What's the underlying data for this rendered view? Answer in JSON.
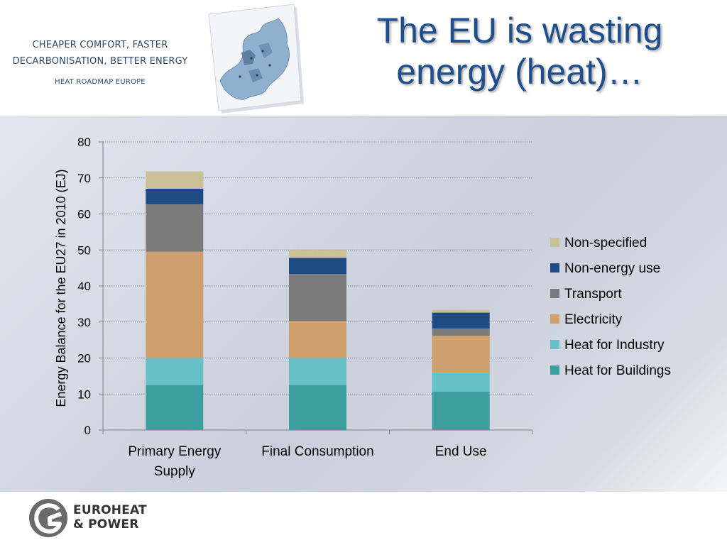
{
  "header": {
    "tagline_1": "CHEAPER COMFORT, FASTER",
    "tagline_2": "DECARBONISATION, BETTER ENERGY",
    "tagline_3": "HEAT ROADMAP EUROPE",
    "title_line_1": "The  EU is wasting",
    "title_line_2": "energy (heat)…",
    "title_color": "#1f4e8c"
  },
  "map_thumbnail": {
    "icon": "europe-map-icon"
  },
  "footer": {
    "logo_icon": "euroheat-logo-icon",
    "logo_line_1": "EUROHEAT",
    "logo_line_2": "& POWER"
  },
  "chart_data": {
    "type": "bar",
    "stacked": true,
    "title": "",
    "xlabel": "",
    "ylabel": "Energy Balance for the EU27 in 2010 (EJ)",
    "ylim": [
      0,
      80
    ],
    "yticks": [
      0,
      10,
      20,
      30,
      40,
      50,
      60,
      70,
      80
    ],
    "grid": true,
    "legend_position": "right",
    "categories": [
      [
        "Primary Energy",
        "Supply"
      ],
      [
        "Final Consumption"
      ],
      [
        "End Use"
      ]
    ],
    "series": [
      {
        "name": "Heat for Buildings",
        "color": "#3d9ea0",
        "values": [
          12.5,
          12.5,
          10.7
        ]
      },
      {
        "name": "Heat for Industry",
        "color": "#66c2c6",
        "values": [
          7.5,
          7.5,
          5.1
        ]
      },
      {
        "name": "Electricity",
        "color": "#cf9f6e",
        "values": [
          29.5,
          10.3,
          10.4
        ]
      },
      {
        "name": "Transport",
        "color": "#7b7b7b",
        "values": [
          13.2,
          13.0,
          2.0
        ]
      },
      {
        "name": "Non-energy use",
        "color": "#1f4b84",
        "values": [
          4.3,
          4.5,
          4.4
        ]
      },
      {
        "name": "Non-specified",
        "color": "#cbc199",
        "values": [
          4.8,
          2.2,
          0.8
        ]
      }
    ]
  }
}
